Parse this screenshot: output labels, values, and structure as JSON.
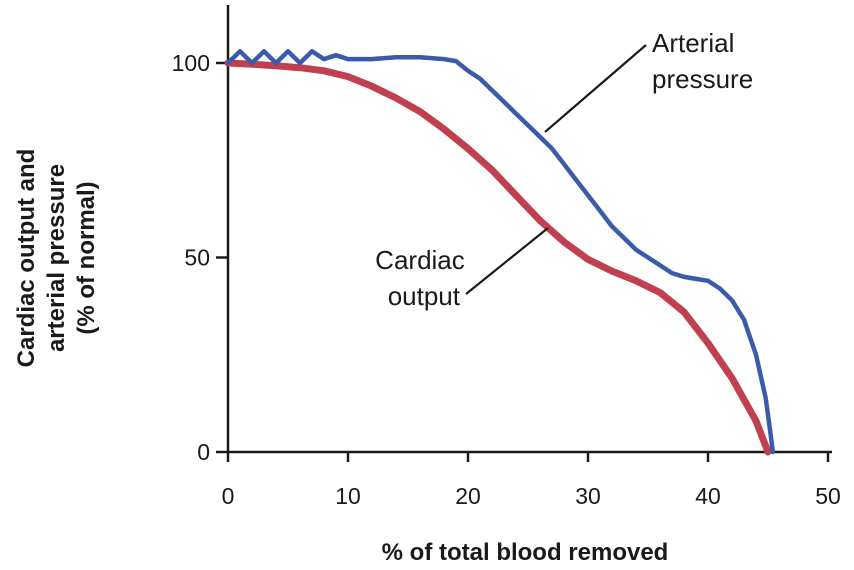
{
  "chart_data": {
    "type": "line",
    "xlabel": "% of total blood removed",
    "ylabel_lines": [
      "Cardiac output and",
      "arterial pressure",
      "(% of normal)"
    ],
    "xlim": [
      0,
      50
    ],
    "ylim": [
      0,
      100
    ],
    "x_ticks": [
      0,
      10,
      20,
      30,
      40,
      50
    ],
    "y_ticks": [
      0,
      50,
      100
    ],
    "grid": false,
    "series": [
      {
        "name": "Arterial pressure",
        "label_lines": [
          "Arterial",
          "pressure"
        ],
        "color": "#3a5ba9",
        "x": [
          0,
          1,
          2,
          3,
          4,
          5,
          6,
          7,
          8,
          9,
          10,
          12,
          14,
          16,
          18,
          19,
          20,
          21,
          22,
          23,
          24,
          25,
          26,
          27,
          28,
          29,
          30,
          31,
          32,
          33,
          34,
          35,
          36,
          37,
          38,
          39,
          40,
          41,
          42,
          43,
          44,
          44.8,
          45.2,
          45.4
        ],
        "y": [
          100,
          103,
          100,
          103,
          100,
          103,
          100,
          103,
          101,
          102,
          101,
          101,
          101.5,
          101.5,
          101,
          100.5,
          98,
          96,
          93,
          90,
          87,
          84,
          81,
          78,
          74,
          70,
          66,
          62,
          58,
          55,
          52,
          50,
          48,
          46,
          45,
          44.5,
          44,
          42,
          39,
          34,
          25,
          14,
          5,
          0
        ]
      },
      {
        "name": "Cardiac output",
        "label_lines": [
          "Cardiac",
          "output"
        ],
        "color": "#c04050",
        "x": [
          0,
          2,
          4,
          6,
          8,
          10,
          12,
          14,
          16,
          18,
          20,
          22,
          24,
          26,
          28,
          30,
          32,
          34,
          36,
          38,
          40,
          42,
          44,
          45
        ],
        "y": [
          100,
          99.7,
          99.3,
          98.8,
          98,
          96.5,
          94,
          91,
          87.5,
          83,
          78,
          72.5,
          66,
          59.5,
          54,
          49.5,
          46.5,
          44,
          41,
          36,
          28,
          19,
          8,
          0
        ]
      }
    ]
  }
}
